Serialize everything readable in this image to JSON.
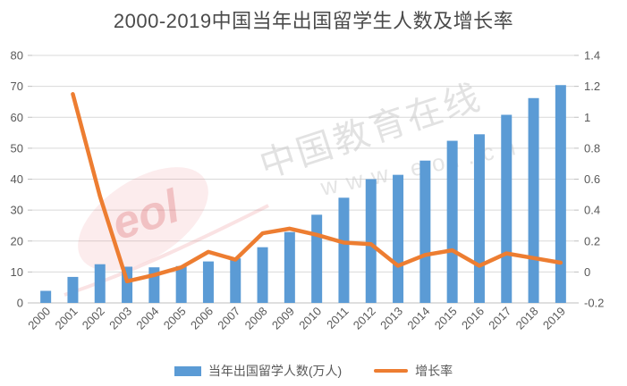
{
  "title": "2000-2019中国当年出国留学生人数及增长率",
  "watermark": {
    "line1": "中国教育在线",
    "line2": "www.eol.cn",
    "logo_text": "eol"
  },
  "legend": {
    "items": [
      {
        "label": "当年出国留学人数(万人)",
        "type": "bar"
      },
      {
        "label": "增长率",
        "type": "line"
      }
    ]
  },
  "colors": {
    "bar": "#5B9BD5",
    "line": "#ED7D31",
    "grid": "#D9D9D9",
    "axis_line": "#BFBFBF",
    "axis_text": "#595959",
    "title_text": "#4A4A4A",
    "legend_text": "#595959",
    "watermark_gray": "#C6C6C6",
    "watermark_red": "#DB5F64"
  },
  "chart_data": {
    "type": "bar+line",
    "title": "2000-2019中国当年出国留学生人数及增长率",
    "categories": [
      "2000",
      "2001",
      "2002",
      "2003",
      "2004",
      "2005",
      "2006",
      "2007",
      "2008",
      "2009",
      "2010",
      "2011",
      "2012",
      "2013",
      "2014",
      "2015",
      "2016",
      "2017",
      "2018",
      "2019"
    ],
    "series": [
      {
        "name": "当年出国留学人数(万人)",
        "type": "bar",
        "axis": "left",
        "color": "#5B9BD5",
        "values": [
          3.9,
          8.4,
          12.5,
          11.7,
          11.5,
          11.9,
          13.4,
          14.4,
          18.0,
          22.9,
          28.5,
          34.0,
          40.0,
          41.4,
          46.0,
          52.4,
          54.5,
          60.8,
          66.2,
          70.4
        ]
      },
      {
        "name": "增长率",
        "type": "line",
        "axis": "right",
        "color": "#ED7D31",
        "values": [
          null,
          1.15,
          0.49,
          -0.06,
          -0.02,
          0.03,
          0.13,
          0.08,
          0.25,
          0.28,
          0.24,
          0.19,
          0.18,
          0.04,
          0.11,
          0.14,
          0.04,
          0.12,
          0.09,
          0.06
        ]
      }
    ],
    "left_axis": {
      "min": 0,
      "max": 80,
      "tick_labels": [
        "0",
        "10",
        "20",
        "30",
        "40",
        "50",
        "60",
        "70",
        "80"
      ]
    },
    "right_axis": {
      "min": -0.2,
      "max": 1.4,
      "tick_labels": [
        "-0.2",
        "0",
        "0.2",
        "0.4",
        "0.6",
        "0.8",
        "1",
        "1.2",
        "1.4"
      ]
    },
    "grid": true,
    "legend_position": "bottom",
    "x_label_rotation": -45
  }
}
